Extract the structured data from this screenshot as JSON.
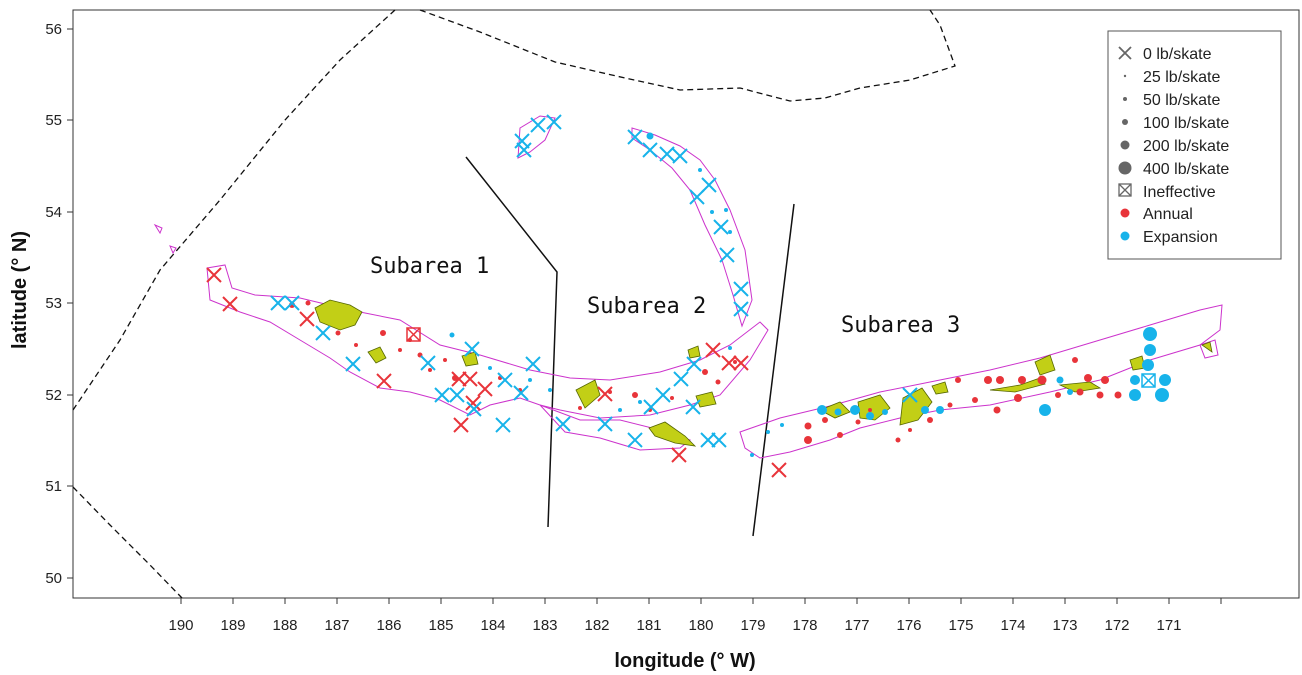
{
  "map": {
    "xlabel": "longitude (° W)",
    "ylabel": "latitude (° N)",
    "x_ticks": [
      "190",
      "189",
      "188",
      "187",
      "186",
      "185",
      "184",
      "183",
      "182",
      "181",
      "180",
      "179",
      "178",
      "177",
      "176",
      "175",
      "174",
      "173",
      "172",
      "171"
    ],
    "y_ticks": [
      "50",
      "51",
      "52",
      "53",
      "54",
      "55",
      "56"
    ],
    "regions": [
      "Subarea 1",
      "Subarea 2",
      "Subarea 3"
    ],
    "legend": [
      {
        "symbol": "x",
        "label": "0 lb/skate"
      },
      {
        "symbol": "dot-25",
        "label": "25 lb/skate"
      },
      {
        "symbol": "dot-50",
        "label": "50 lb/skate"
      },
      {
        "symbol": "dot-100",
        "label": "100 lb/skate"
      },
      {
        "symbol": "dot-200",
        "label": "200 lb/skate"
      },
      {
        "symbol": "dot-400",
        "label": "400 lb/skate"
      },
      {
        "symbol": "boxed-x",
        "label": "Ineffective"
      },
      {
        "symbol": "red-dot",
        "label": "Annual"
      },
      {
        "symbol": "blue-dot",
        "label": "Expansion"
      }
    ],
    "colors": {
      "annual": "#e8343a",
      "expansion": "#17b3ea",
      "land": "#c2cf16",
      "contour": "#cc33cc",
      "boundary": "#111111"
    }
  }
}
